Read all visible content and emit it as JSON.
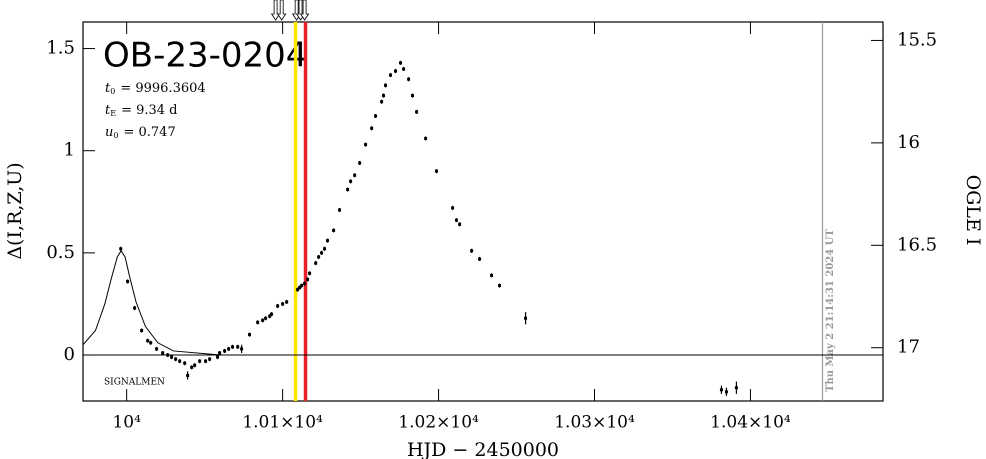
{
  "chart_data": {
    "type": "scatter",
    "title": "OB-23-0204",
    "params": [
      {
        "symbol": "t",
        "sub": "0",
        "text": "= 9996.3604"
      },
      {
        "symbol": "t",
        "sub": "E",
        "text": "= 9.34 d"
      },
      {
        "symbol": "u",
        "sub": "0",
        "text": "= 0.747"
      }
    ],
    "annotation": "SIGNALMEN",
    "timestamp": "Thu May  2 21:14:31 2024 UT",
    "x_label": "HJD − 2450000",
    "y_label": "Δ(I,R,Z,U)",
    "y2_label": "OGLE I",
    "xlim": [
      9972,
      10485
    ],
    "ylim": [
      -0.225,
      1.63
    ],
    "y2lim": [
      17.26,
      15.41
    ],
    "xticks": [
      {
        "value": 10000,
        "label": "10⁴"
      },
      {
        "value": 10100,
        "label": "1.01×10⁴"
      },
      {
        "value": 10200,
        "label": "1.02×10⁴"
      },
      {
        "value": 10300,
        "label": "1.03×10⁴"
      },
      {
        "value": 10400,
        "label": "1.04×10⁴"
      }
    ],
    "yticks": [
      0,
      0.5,
      1,
      1.5
    ],
    "y2ticks": [
      15.5,
      16,
      16.5,
      17
    ],
    "color": "#000000",
    "x": [
      9996.2,
      10000.6,
      10005.1,
      10009.6,
      10013.5,
      10015.4,
      10019.2,
      10023.1,
      10026.3,
      10028.8,
      10031.4,
      10034.0,
      10037.2,
      10039.1,
      10041.7,
      10043.6,
      10046.8,
      10050.6,
      10053.2,
      10058.3,
      10059.6,
      10062.8,
      10065.4,
      10067.9,
      10071.2,
      10073.7,
      10078.8,
      10084.0,
      10087.2,
      10089.1,
      10091.7,
      10092.9,
      10096.8,
      10100.0,
      10102.6,
      10109.6,
      10110.9,
      10112.2,
      10114.1,
      10116.0,
      10117.3,
      10121.2,
      10123.1,
      10125.0,
      10126.9,
      10128.8,
      10132.7,
      10136.5,
      10141.7,
      10143.6,
      10146.2,
      10149.4,
      10153.2,
      10157.1,
      10159.6,
      10163.5,
      10164.7,
      10166.0,
      10169.2,
      10172.4,
      10175.6,
      10177.6,
      10180.8,
      10183.3,
      10185.9,
      10191.7,
      10198.7,
      10209.0,
      10211.5,
      10213.5,
      10221.2,
      10226.3,
      10234.0,
      10239.1,
      10255.8,
      10381.4,
      10384.6,
      10391.0
    ],
    "values": [
      0.52,
      0.36,
      0.23,
      0.12,
      0.07,
      0.06,
      0.03,
      0.01,
      0.0,
      -0.01,
      -0.02,
      -0.03,
      -0.04,
      -0.1,
      -0.06,
      -0.05,
      -0.03,
      -0.03,
      -0.02,
      -0.01,
      0.01,
      0.02,
      0.03,
      0.04,
      0.04,
      0.03,
      0.1,
      0.16,
      0.17,
      0.18,
      0.19,
      0.2,
      0.24,
      0.25,
      0.26,
      0.32,
      0.33,
      0.34,
      0.35,
      0.37,
      0.4,
      0.45,
      0.48,
      0.5,
      0.52,
      0.56,
      0.61,
      0.71,
      0.81,
      0.85,
      0.88,
      0.94,
      1.03,
      1.11,
      1.17,
      1.24,
      1.27,
      1.32,
      1.37,
      1.39,
      1.43,
      1.4,
      1.35,
      1.27,
      1.19,
      1.06,
      0.9,
      0.72,
      0.66,
      0.64,
      0.51,
      0.47,
      0.39,
      0.34,
      0.18,
      -0.17,
      -0.18,
      -0.16
    ],
    "errors": [
      0.01,
      0.01,
      0.01,
      0.01,
      0.01,
      0.01,
      0.01,
      0.01,
      0.01,
      0.01,
      0.01,
      0.01,
      0.01,
      0.02,
      0.01,
      0.01,
      0.01,
      0.01,
      0.01,
      0.01,
      0.01,
      0.01,
      0.01,
      0.01,
      0.01,
      0.02,
      0.01,
      0.01,
      0.01,
      0.01,
      0.01,
      0.01,
      0.01,
      0.01,
      0.01,
      0.01,
      0.01,
      0.01,
      0.01,
      0.01,
      0.01,
      0.01,
      0.01,
      0.01,
      0.01,
      0.01,
      0.01,
      0.01,
      0.01,
      0.01,
      0.01,
      0.01,
      0.01,
      0.01,
      0.01,
      0.01,
      0.01,
      0.01,
      0.01,
      0.01,
      0.01,
      0.01,
      0.01,
      0.01,
      0.01,
      0.01,
      0.01,
      0.01,
      0.01,
      0.01,
      0.01,
      0.01,
      0.01,
      0.01,
      0.03,
      0.02,
      0.02,
      0.03
    ],
    "model": {
      "x": [
        9972,
        9980,
        9986,
        9990,
        9994,
        9996.4,
        9999,
        10002,
        10006,
        10012,
        10020,
        10030,
        10060,
        10485
      ],
      "values": [
        0.05,
        0.12,
        0.25,
        0.37,
        0.48,
        0.51,
        0.48,
        0.38,
        0.26,
        0.14,
        0.06,
        0.02,
        0.0,
        0.0
      ]
    },
    "hline": 0,
    "vlines": [
      {
        "x": 10108.3,
        "color": "#ffe600"
      },
      {
        "x": 10114.7,
        "color": "#e8202a"
      },
      {
        "x": 10446.2,
        "color": "#999999"
      }
    ],
    "arrows": [
      10095.5,
      10099.4,
      10109.0,
      10111.5,
      10114.1
    ]
  }
}
